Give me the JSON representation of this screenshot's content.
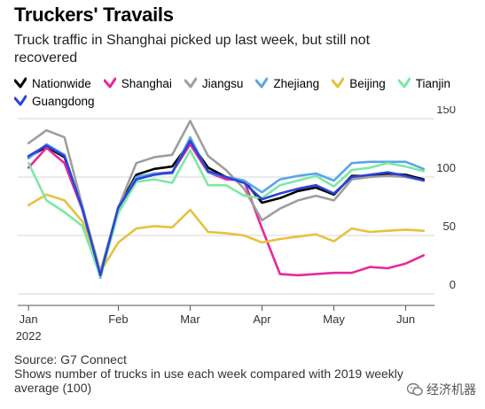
{
  "title": "Truckers' Travails",
  "subtitle": "Truck traffic in Shanghai picked up last week, but still not recovered",
  "footer": {
    "source": "Source: G7 Connect",
    "note": "Shows number of trucks in use each week compared with 2019 weekly average (100)"
  },
  "watermark": {
    "text": "经济机器",
    "icon": "wechat-icon"
  },
  "chart_data": {
    "type": "line",
    "title": "Truckers' Travails",
    "subtitle": "Truck traffic in Shanghai picked up last week, but still not recovered",
    "xlabel": "",
    "ylabel": "",
    "ylim": [
      0,
      150
    ],
    "yticks": [
      0,
      50,
      100,
      150
    ],
    "grid": true,
    "y_axis_position": "right",
    "legend_position": "top",
    "x_ticks": [
      {
        "label": "Jan",
        "sublabel": "2022",
        "week": 1
      },
      {
        "label": "Feb",
        "sublabel": "",
        "week": 6
      },
      {
        "label": "Mar",
        "sublabel": "",
        "week": 10
      },
      {
        "label": "Apr",
        "sublabel": "",
        "week": 14
      },
      {
        "label": "May",
        "sublabel": "",
        "week": 18
      },
      {
        "label": "Jun",
        "sublabel": "",
        "week": 22
      }
    ],
    "x": [
      1,
      2,
      3,
      4,
      5,
      6,
      7,
      8,
      9,
      10,
      11,
      12,
      13,
      14,
      15,
      16,
      17,
      18,
      19,
      20,
      21,
      22,
      23
    ],
    "series": [
      {
        "name": "Nationwide",
        "color": "#000000",
        "values": [
          117,
          126,
          117,
          73,
          16,
          74,
          102,
          107,
          109,
          130,
          108,
          100,
          97,
          78,
          82,
          88,
          91,
          85,
          101,
          101,
          103,
          102,
          98
        ]
      },
      {
        "name": "Shanghai",
        "color": "#e8289b",
        "values": [
          108,
          125,
          112,
          72,
          14,
          72,
          98,
          103,
          104,
          128,
          104,
          98,
          97,
          56,
          17,
          16,
          17,
          18,
          18,
          23,
          22,
          26,
          33
        ]
      },
      {
        "name": "Jiangsu",
        "color": "#9e9e9e",
        "values": [
          129,
          140,
          134,
          75,
          19,
          74,
          112,
          117,
          119,
          148,
          118,
          106,
          90,
          63,
          73,
          80,
          84,
          80,
          98,
          100,
          101,
          100,
          97
        ]
      },
      {
        "name": "Zhejiang",
        "color": "#58a6e6",
        "values": [
          116,
          128,
          119,
          72,
          14,
          73,
          100,
          103,
          103,
          134,
          104,
          100,
          97,
          87,
          98,
          101,
          103,
          97,
          112,
          113,
          113,
          113,
          107
        ]
      },
      {
        "name": "Beijing",
        "color": "#e8c13d",
        "values": [
          76,
          85,
          80,
          62,
          19,
          44,
          56,
          58,
          57,
          72,
          53,
          52,
          50,
          44,
          47,
          49,
          51,
          45,
          56,
          53,
          54,
          55,
          54
        ]
      },
      {
        "name": "Tianjin",
        "color": "#7de8a5",
        "values": [
          112,
          80,
          70,
          58,
          15,
          69,
          96,
          98,
          95,
          123,
          93,
          93,
          84,
          82,
          93,
          97,
          101,
          92,
          106,
          108,
          112,
          109,
          105
        ]
      },
      {
        "name": "Guangdong",
        "color": "#2b44d6",
        "values": [
          118,
          127,
          118,
          73,
          16,
          74,
          98,
          102,
          104,
          131,
          105,
          100,
          95,
          81,
          86,
          90,
          93,
          86,
          100,
          102,
          104,
          101,
          97
        ]
      }
    ]
  }
}
